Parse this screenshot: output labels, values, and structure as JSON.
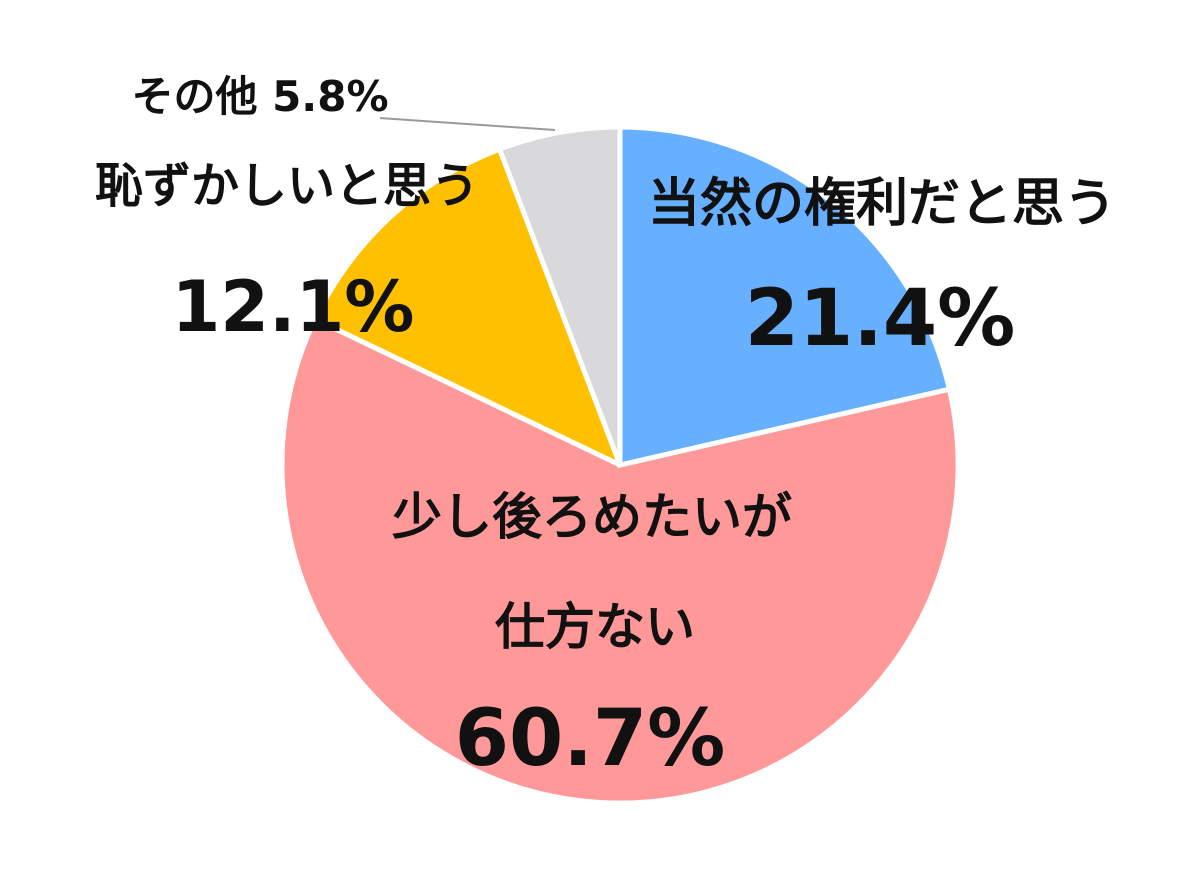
{
  "chart_data": {
    "type": "pie",
    "direction": "clockwise from top",
    "slices": [
      {
        "label": "当然の権利だと思う",
        "value": 21.4,
        "value_label": "21.4%",
        "color": "#66B0FF"
      },
      {
        "label_lines": [
          "少し後ろめたいが",
          "仕方ない"
        ],
        "value": 60.7,
        "value_label": "60.7%",
        "color": "#FF9999"
      },
      {
        "label": "恥ずかしいと思う",
        "value": 12.1,
        "value_label": "12.1%",
        "color": "#FFC000"
      },
      {
        "label": "その他",
        "value": 5.8,
        "value_label": "5.8%",
        "color": "#D9D8DA"
      }
    ],
    "legend": "none",
    "data_labels": "category and percentage"
  }
}
